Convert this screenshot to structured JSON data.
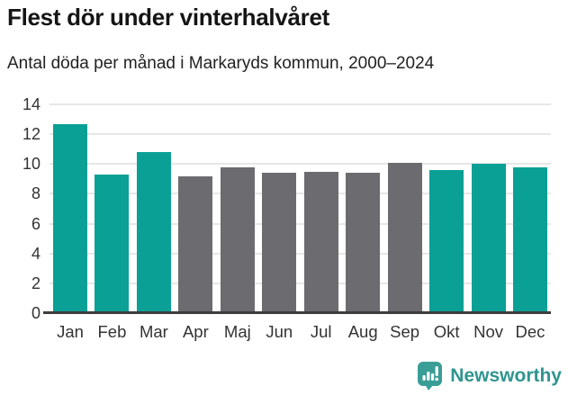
{
  "header": {
    "title": "Flest dör under vinterhalvåret",
    "subtitle": "Antal döda per månad i Markaryds kommun, 2000–2024"
  },
  "chart_data": {
    "type": "bar",
    "title": "Flest dör under vinterhalvåret",
    "subtitle": "Antal döda per månad i Markaryds kommun, 2000–2024",
    "categories": [
      "Jan",
      "Feb",
      "Mar",
      "Apr",
      "Maj",
      "Jun",
      "Jul",
      "Aug",
      "Sep",
      "Okt",
      "Nov",
      "Dec"
    ],
    "values": [
      12.7,
      9.3,
      10.8,
      9.2,
      9.8,
      9.4,
      9.5,
      9.4,
      10.1,
      9.6,
      10.0,
      9.8
    ],
    "highlighted_categories": [
      "Jan",
      "Feb",
      "Mar",
      "Okt",
      "Nov",
      "Dec"
    ],
    "colors": {
      "highlight": "#0aa096",
      "default": "#6b6b70",
      "grid": "#e7e7e7",
      "axis": "#3d3d3d",
      "tick_label": "#333333"
    },
    "xlabel": "",
    "ylabel": "",
    "ylim": [
      0,
      14
    ],
    "yticks": [
      0,
      2,
      4,
      6,
      8,
      10,
      12,
      14
    ],
    "grid": true,
    "legend": "none"
  },
  "footer": {
    "brand": "Newsworthy",
    "brand_color": "#2f958f",
    "logo_icon": "bar-chart-speech-bubble-icon"
  }
}
